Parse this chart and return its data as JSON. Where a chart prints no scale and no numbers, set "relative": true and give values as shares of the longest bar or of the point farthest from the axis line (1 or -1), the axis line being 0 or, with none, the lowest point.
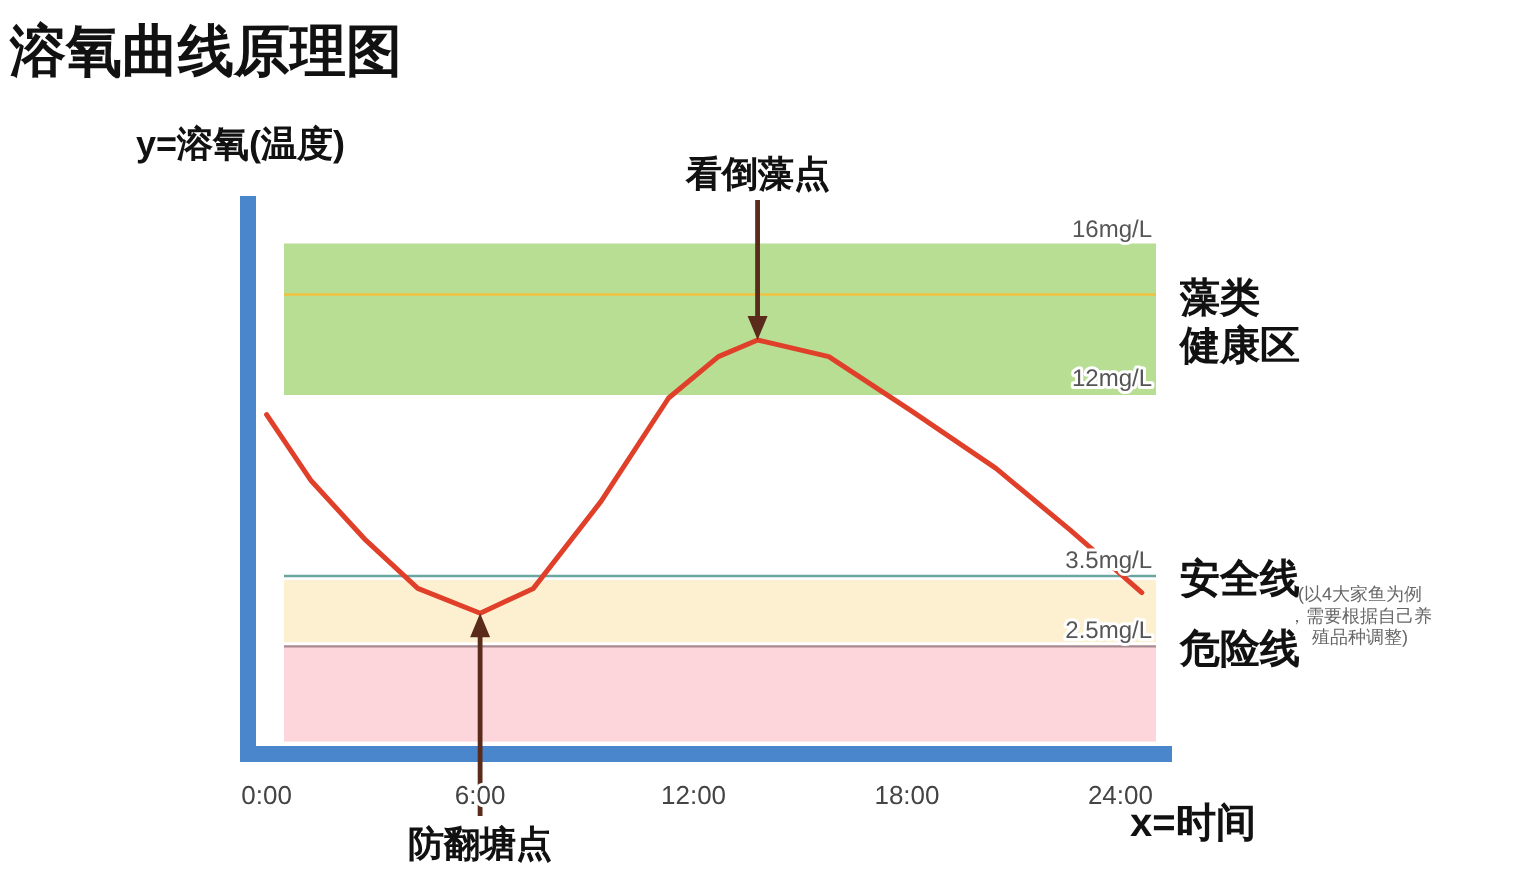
{
  "chart_data": {
    "type": "line",
    "title": "溶氧曲线原理图",
    "ylabel": "y=溶氧(温度)",
    "xlabel": "x=时间",
    "relative": true,
    "x": [
      0,
      1.25,
      2.75,
      4.25,
      6,
      7.5,
      9.4,
      11.3,
      12.7,
      13.8,
      15.8,
      18.1,
      20.5,
      22.6,
      24.6
    ],
    "series": [
      {
        "color": "#e0402a",
        "values": [
          0.82,
          0.66,
          0.52,
          0.4,
          0.34,
          0.4,
          0.61,
          0.86,
          0.96,
          1.0,
          0.96,
          0.83,
          0.69,
          0.54,
          0.39
        ]
      }
    ],
    "xlim": [
      -0.3,
      25
    ],
    "xticks": [
      {
        "value": 0,
        "label": "0:00"
      },
      {
        "value": 6,
        "label": "6:00"
      },
      {
        "value": 12,
        "label": "12:00"
      },
      {
        "value": 18,
        "label": "18:00"
      },
      {
        "value": 24,
        "label": "24:00"
      }
    ],
    "bands": [
      {
        "axis": "y",
        "from": 0.87,
        "to": 1.23,
        "label": "藻类健康区",
        "color": "#b8de94"
      },
      {
        "axis": "y",
        "from": 0.27,
        "to": 0.42,
        "color": "#fdf0d0"
      },
      {
        "axis": "y",
        "from": 0.03,
        "to": 0.26,
        "color": "#fcd6da"
      }
    ],
    "ref_lines": [
      {
        "axis": "y",
        "value": 1.23,
        "label": "16mg/L",
        "color": "#b8de94"
      },
      {
        "axis": "y",
        "value": 1.11,
        "color": "#f0c040"
      },
      {
        "axis": "y",
        "value": 0.87,
        "label": "12mg/L",
        "color": "#b8de94"
      },
      {
        "axis": "y",
        "value": 0.43,
        "label": "3.5mg/L",
        "color": "#6aa6a0"
      },
      {
        "axis": "y",
        "value": 0.26,
        "label": "2.5mg/L",
        "color": "#a88a90"
      }
    ],
    "annotations": [
      "看倒藻点",
      "防翻塘点",
      "安全线",
      "危险线",
      "(以4大家鱼为例，需要根据自己养殖品种调整)"
    ]
  }
}
